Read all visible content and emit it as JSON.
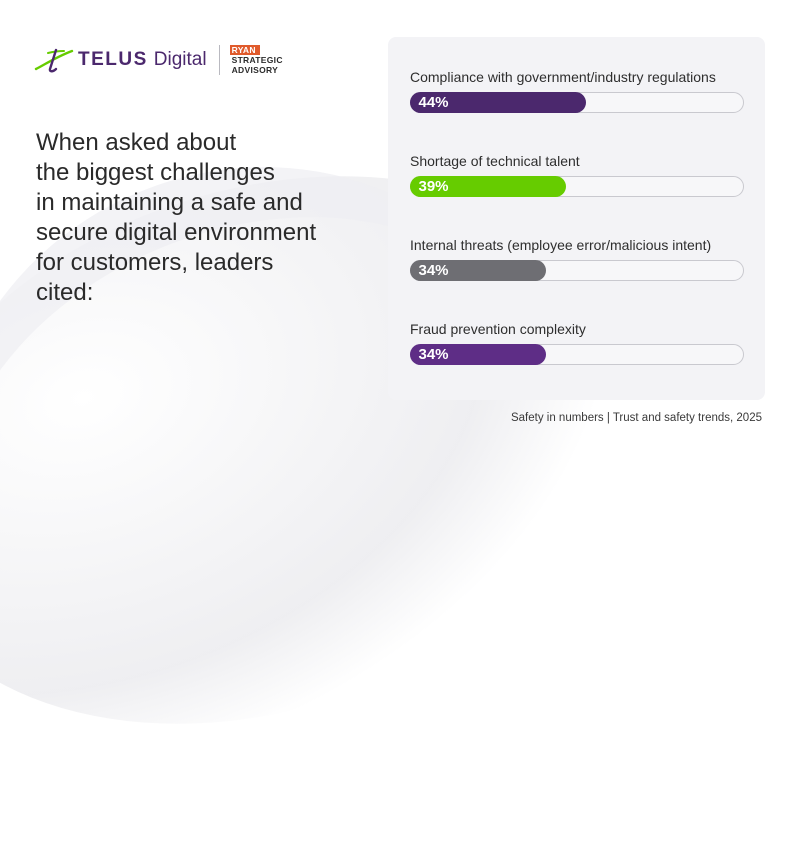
{
  "brand": {
    "telus_wordmark": "TELUS",
    "digital_wordmark": "Digital",
    "partner_lines": [
      "RYAN",
      "STRATEGIC",
      "ADVISORY"
    ],
    "telus_purple": "#4b286d",
    "telus_green": "#66cc00",
    "partner_orange": "#e05a2b"
  },
  "headline": "When asked about\nthe biggest challenges\nin maintaining a safe and\nsecure digital environment\nfor customers, leaders\ncited:",
  "chart_data": {
    "type": "bar",
    "orientation": "horizontal",
    "categories": [
      "Compliance with government/industry regulations",
      "Shortage of technical talent",
      "Internal threats (employee error/malicious intent)",
      "Fraud prevention complexity"
    ],
    "values": [
      44,
      39,
      34,
      34
    ],
    "value_labels": [
      "44%",
      "39%",
      "34%",
      "34%"
    ],
    "colors": [
      "#4b286d",
      "#66cc00",
      "#6e6e73",
      "#5e2d86"
    ],
    "xlim": [
      0,
      100
    ],
    "grid": false
  },
  "footer": "Safety in numbers | Trust and safety trends, 2025"
}
